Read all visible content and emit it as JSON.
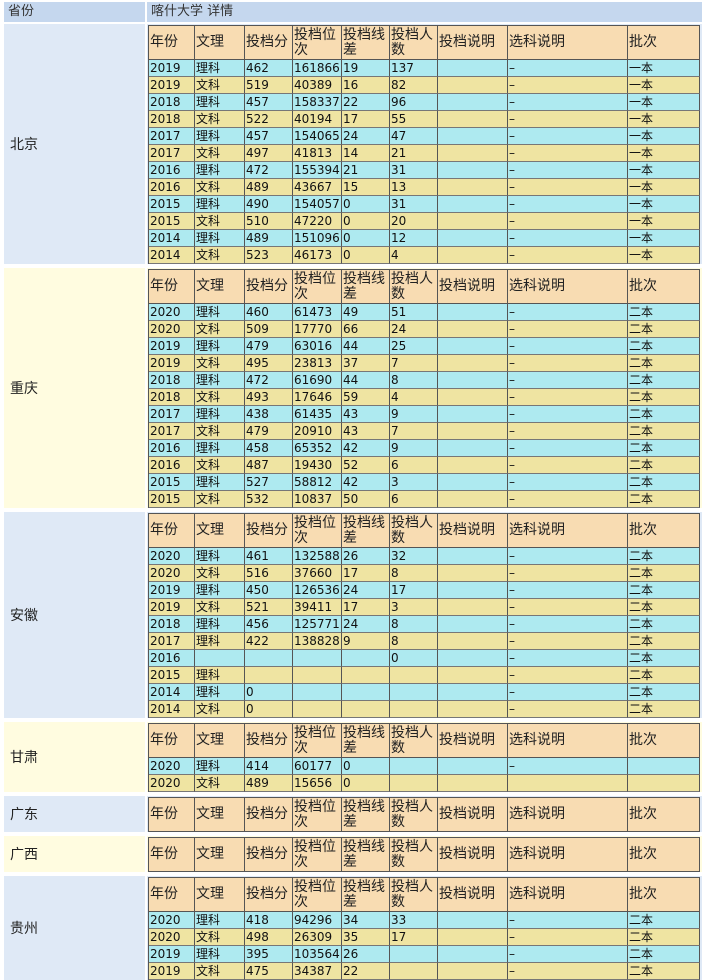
{
  "header": {
    "col1": "省份",
    "col2": "喀什大学 详情"
  },
  "columns": [
    "年份",
    "文理",
    "投档分",
    "投档位次",
    "投档线差",
    "投档人数",
    "投档说明",
    "选科说明",
    "批次"
  ],
  "provinces": [
    {
      "name": "北京",
      "rows": [
        [
          "2019",
          "理科",
          "462",
          "161866",
          "19",
          "137",
          null,
          "–",
          "一本"
        ],
        [
          "2019",
          "文科",
          "519",
          "40389",
          "16",
          "82",
          null,
          "–",
          "一本"
        ],
        [
          "2018",
          "理科",
          "457",
          "158337",
          "22",
          "96",
          null,
          "–",
          "一本"
        ],
        [
          "2018",
          "文科",
          "522",
          "40194",
          "17",
          "55",
          null,
          "–",
          "一本"
        ],
        [
          "2017",
          "理科",
          "457",
          "154065",
          "24",
          "47",
          null,
          "–",
          "一本"
        ],
        [
          "2017",
          "文科",
          "497",
          "41813",
          "14",
          "21",
          null,
          "–",
          "一本"
        ],
        [
          "2016",
          "理科",
          "472",
          "155394",
          "21",
          "31",
          null,
          "–",
          "一本"
        ],
        [
          "2016",
          "文科",
          "489",
          "43667",
          "15",
          "13",
          null,
          "–",
          "一本"
        ],
        [
          "2015",
          "理科",
          "490",
          "154057",
          "0",
          "31",
          null,
          "–",
          "一本"
        ],
        [
          "2015",
          "文科",
          "510",
          "47220",
          "0",
          "20",
          null,
          "–",
          "一本"
        ],
        [
          "2014",
          "理科",
          "489",
          "151096",
          "0",
          "12",
          null,
          "–",
          "一本"
        ],
        [
          "2014",
          "文科",
          "523",
          "46173",
          "0",
          "4",
          null,
          "–",
          "一本"
        ]
      ]
    },
    {
      "name": "重庆",
      "rows": [
        [
          "2020",
          "理科",
          "460",
          "61473",
          "49",
          "51",
          null,
          "–",
          "二本"
        ],
        [
          "2020",
          "文科",
          "509",
          "17770",
          "66",
          "24",
          null,
          "–",
          "二本"
        ],
        [
          "2019",
          "理科",
          "479",
          "63016",
          "44",
          "25",
          null,
          "–",
          "二本"
        ],
        [
          "2019",
          "文科",
          "495",
          "23813",
          "37",
          "7",
          null,
          "–",
          "二本"
        ],
        [
          "2018",
          "理科",
          "472",
          "61690",
          "44",
          "8",
          null,
          "–",
          "二本"
        ],
        [
          "2018",
          "文科",
          "493",
          "17646",
          "59",
          "4",
          null,
          "–",
          "二本"
        ],
        [
          "2017",
          "理科",
          "438",
          "61435",
          "43",
          "9",
          null,
          "–",
          "二本"
        ],
        [
          "2017",
          "文科",
          "479",
          "20910",
          "43",
          "7",
          null,
          "–",
          "二本"
        ],
        [
          "2016",
          "理科",
          "458",
          "65352",
          "42",
          "9",
          null,
          "–",
          "二本"
        ],
        [
          "2016",
          "文科",
          "487",
          "19430",
          "52",
          "6",
          null,
          "–",
          "二本"
        ],
        [
          "2015",
          "理科",
          "527",
          "58812",
          "42",
          "3",
          null,
          "–",
          "二本"
        ],
        [
          "2015",
          "文科",
          "532",
          "10837",
          "50",
          "6",
          null,
          "–",
          "二本"
        ]
      ]
    },
    {
      "name": "安徽",
      "rows": [
        [
          "2020",
          "理科",
          "461",
          "132588",
          "26",
          "32",
          null,
          "–",
          "二本"
        ],
        [
          "2020",
          "文科",
          "516",
          "37660",
          "17",
          "8",
          null,
          "–",
          "二本"
        ],
        [
          "2019",
          "理科",
          "450",
          "126536",
          "24",
          "17",
          null,
          "–",
          "二本"
        ],
        [
          "2019",
          "文科",
          "521",
          "39411",
          "17",
          "3",
          null,
          "–",
          "二本"
        ],
        [
          "2018",
          "理科",
          "456",
          "125771",
          "24",
          "8",
          null,
          "–",
          "二本"
        ],
        [
          "2017",
          "理科",
          "422",
          "138828",
          "9",
          "8",
          null,
          "–",
          "二本"
        ],
        [
          "2016",
          null,
          null,
          null,
          null,
          "0",
          null,
          "–",
          "二本"
        ],
        [
          "2015",
          "理科",
          null,
          null,
          null,
          null,
          null,
          "–",
          "二本"
        ],
        [
          "2014",
          "理科",
          "0",
          null,
          null,
          null,
          null,
          "–",
          "二本"
        ],
        [
          "2014",
          "文科",
          "0",
          null,
          null,
          null,
          null,
          "–",
          "二本"
        ]
      ]
    },
    {
      "name": "甘肃",
      "rows": [
        [
          "2020",
          "理科",
          "414",
          "60177",
          "0",
          null,
          null,
          "–",
          null
        ],
        [
          "2020",
          "文科",
          "489",
          "15656",
          "0",
          null,
          null,
          null,
          null
        ]
      ]
    },
    {
      "name": "广东",
      "rows": []
    },
    {
      "name": "广西",
      "rows": []
    },
    {
      "name": "贵州",
      "rows": [
        [
          "2020",
          "理科",
          "418",
          "94296",
          "34",
          "33",
          null,
          "–",
          "二本"
        ],
        [
          "2020",
          "文科",
          "498",
          "26309",
          "35",
          "17",
          null,
          "–",
          "二本"
        ],
        [
          "2019",
          "理科",
          "395",
          "103564",
          "26",
          null,
          null,
          "–",
          "二本"
        ],
        [
          "2019",
          "文科",
          "475",
          "34387",
          "22",
          null,
          null,
          "–",
          "二本"
        ]
      ]
    }
  ]
}
